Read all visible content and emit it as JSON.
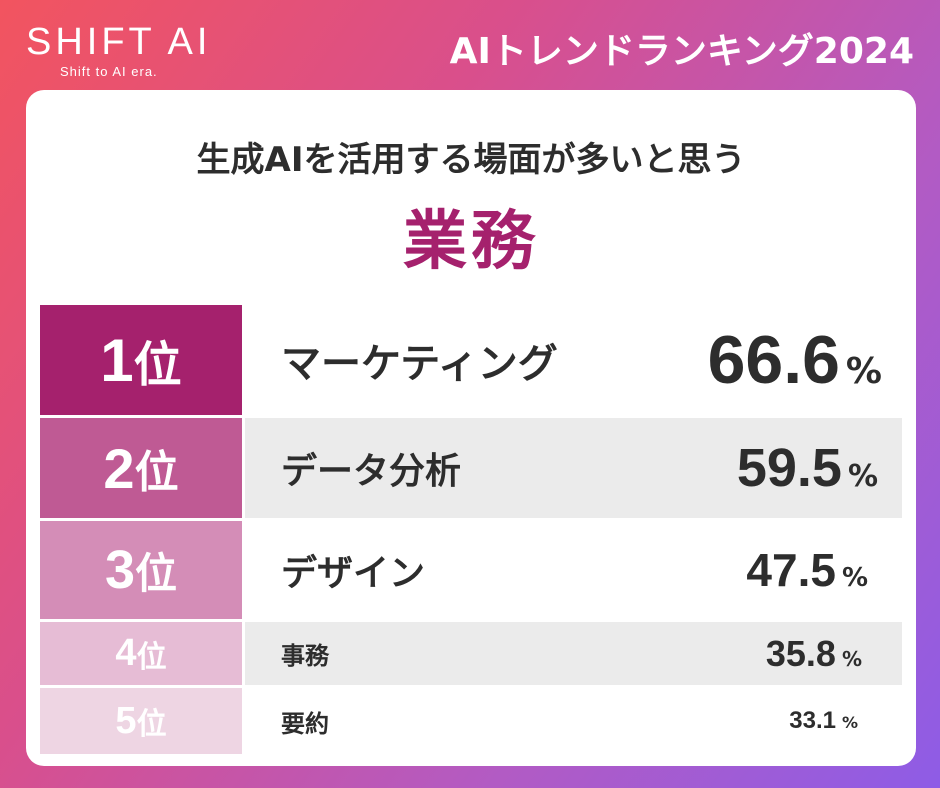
{
  "brand": {
    "logo": "SHIFT AI",
    "tagline": "Shift to AI era."
  },
  "header": {
    "title": "AIトレンドランキング2024"
  },
  "card": {
    "subtitle": "生成AIを活用する場面が多いと思う",
    "title": "業務"
  },
  "ranking": [
    {
      "rank": "1",
      "suffix": "位",
      "label": "マーケティング",
      "value": "66.6",
      "unit": "%"
    },
    {
      "rank": "2",
      "suffix": "位",
      "label": "データ分析",
      "value": "59.5",
      "unit": "%"
    },
    {
      "rank": "3",
      "suffix": "位",
      "label": "デザイン",
      "value": "47.5",
      "unit": "%"
    },
    {
      "rank": "4",
      "suffix": "位",
      "label": "事務",
      "value": "35.8",
      "unit": "%"
    },
    {
      "rank": "5",
      "suffix": "位",
      "label": "要約",
      "value": "33.1",
      "unit": "%"
    }
  ],
  "colors": {
    "accent": "#a5216d",
    "rank_colors": [
      "#a5216d",
      "#bf5a94",
      "#d48db7",
      "#e6bcd5",
      "#eed5e3"
    ]
  }
}
